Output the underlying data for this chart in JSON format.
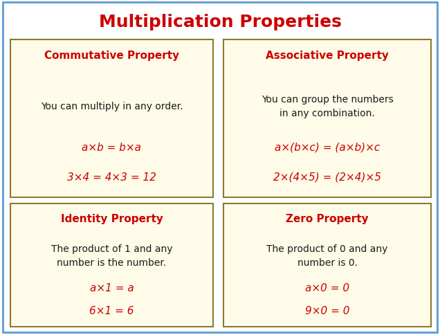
{
  "title": "Multiplication Properties",
  "title_color": "#CC0000",
  "title_fontsize": 18,
  "bg_color": "#ffffff",
  "outer_border_color": "#5B9BD5",
  "box_bg_color": "#FEFBE8",
  "box_border_color": "#8B7A30",
  "heading_color": "#CC0000",
  "text_color": "#1a1a1a",
  "formula_color": "#CC0000",
  "boxes": [
    {
      "heading": "Commutative Property",
      "description": "You can multiply in any order.",
      "formula1": "a×b = b×a",
      "formula2": "3×4 = 4×3 = 12"
    },
    {
      "heading": "Associative Property",
      "description": "You can group the numbers\nin any combination.",
      "formula1": "a×(b×c) = (a×b)×c",
      "formula2": "2×(4×5) = (2×4)×5"
    },
    {
      "heading": "Identity Property",
      "description": "The product of 1 and any\nnumber is the number.",
      "formula1": "a×1 = a",
      "formula2": "6×1 = 6"
    },
    {
      "heading": "Zero Property",
      "description": "The product of 0 and any\nnumber is 0.",
      "formula1": "a×0 = 0",
      "formula2": "9×0 = 0"
    }
  ]
}
